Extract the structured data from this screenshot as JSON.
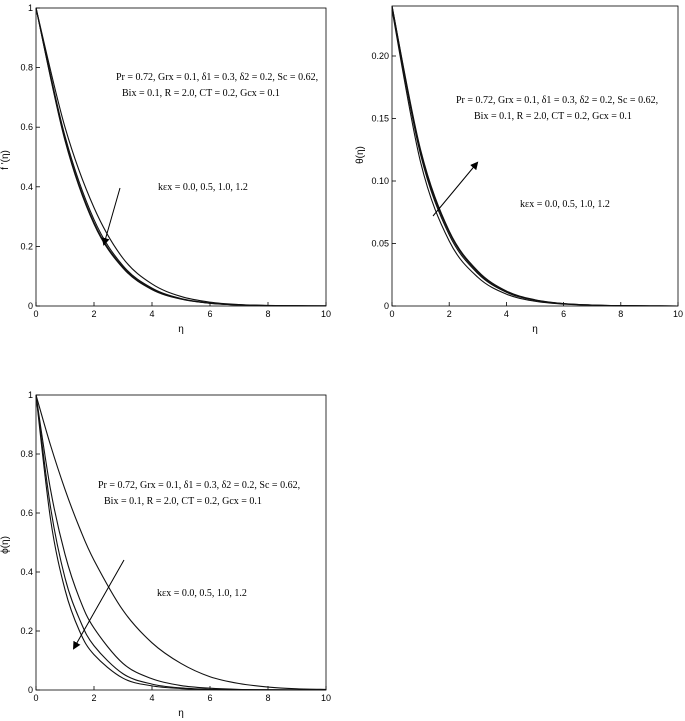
{
  "chart_data": [
    {
      "type": "line",
      "ylabel": "f '(η)",
      "xlabel": "η",
      "xlim": [
        0,
        10
      ],
      "ylim": [
        0,
        1
      ],
      "xticks": [
        "0",
        "2",
        "4",
        "6",
        "8",
        "10"
      ],
      "yticks": [
        "0",
        "0.2",
        "0.4",
        "0.6",
        "0.8",
        "1"
      ],
      "annotation_params_line1": "Pr = 0.72, Grx = 0.1, δ1 = 0.3, δ2 = 0.2, Sc = 0.62,",
      "annotation_params_line2": "Bix = 0.1, R = 2.0, CT = 0.2, Gcx = 0.1",
      "annotation_series": "kεx = 0.0, 0.5, 1.0, 1.2",
      "arrow_direction": "down",
      "x": [
        0,
        1,
        2,
        3,
        4,
        5,
        6,
        7,
        8,
        9,
        10
      ],
      "series": [
        {
          "name": "kεx = 0.0",
          "values": [
            1.0,
            0.6,
            0.33,
            0.16,
            0.074,
            0.032,
            0.013,
            0.005,
            0.002,
            0.0007,
            0.0003
          ]
        },
        {
          "name": "kεx = 0.5",
          "values": [
            1.0,
            0.57,
            0.29,
            0.135,
            0.06,
            0.025,
            0.01,
            0.004,
            0.0015,
            0.0005,
            0.0002
          ]
        },
        {
          "name": "kεx = 1.0",
          "values": [
            1.0,
            0.56,
            0.28,
            0.13,
            0.057,
            0.024,
            0.0095,
            0.0037,
            0.0014,
            0.0005,
            0.0002
          ]
        },
        {
          "name": "kεx = 1.2",
          "values": [
            1.0,
            0.555,
            0.275,
            0.127,
            0.055,
            0.023,
            0.009,
            0.0035,
            0.0013,
            0.0005,
            0.0002
          ]
        }
      ]
    },
    {
      "type": "line",
      "ylabel": "θ(η)",
      "xlabel": "η",
      "xlim": [
        0,
        10
      ],
      "ylim": [
        0,
        0.24
      ],
      "xticks": [
        "0",
        "2",
        "4",
        "6",
        "8",
        "10"
      ],
      "yticks": [
        "0",
        "0.05",
        "0.10",
        "0.15",
        "0.20"
      ],
      "annotation_params_line1": "Pr = 0.72, Grx = 0.1, δ1 = 0.3, δ2 = 0.2, Sc = 0.62,",
      "annotation_params_line2": "Bix = 0.1, R = 2.0, CT = 0.2, Gcx = 0.1",
      "annotation_series": "kεx = 0.0, 0.5, 1.0, 1.2",
      "arrow_direction": "up",
      "x": [
        0,
        1,
        2,
        3,
        4,
        5,
        6,
        7,
        8,
        9,
        10
      ],
      "series": [
        {
          "name": "kεx = 0.0",
          "values": [
            0.237,
            0.115,
            0.052,
            0.023,
            0.0095,
            0.0038,
            0.0015,
            0.0006,
            0.0002,
            0.0001,
            0.0
          ]
        },
        {
          "name": "kεx = 0.5",
          "values": [
            0.239,
            0.121,
            0.057,
            0.026,
            0.011,
            0.0045,
            0.0018,
            0.0007,
            0.0003,
            0.0001,
            0.0
          ]
        },
        {
          "name": "kεx = 1.0",
          "values": [
            0.24,
            0.123,
            0.059,
            0.027,
            0.0115,
            0.0048,
            0.0019,
            0.0008,
            0.0003,
            0.0001,
            0.0
          ]
        },
        {
          "name": "kεx = 1.2",
          "values": [
            0.241,
            0.125,
            0.06,
            0.028,
            0.012,
            0.005,
            0.002,
            0.0008,
            0.0003,
            0.0001,
            0.0
          ]
        }
      ]
    },
    {
      "type": "line",
      "ylabel": "ϕ(η)",
      "xlabel": "η",
      "xlim": [
        0,
        10
      ],
      "ylim": [
        0,
        1
      ],
      "xticks": [
        "0",
        "2",
        "4",
        "6",
        "8",
        "10"
      ],
      "yticks": [
        "0",
        "0.2",
        "0.4",
        "0.6",
        "0.8",
        "1"
      ],
      "annotation_params_line1": "Pr = 0.72, Grx = 0.1, δ1 = 0.3, δ2 = 0.2, Sc = 0.62,",
      "annotation_params_line2": "Bix = 0.1, R = 2.0, CT = 0.2, Gcx = 0.1",
      "annotation_series": "kεx = 0.0, 0.5, 1.0, 1.2",
      "arrow_direction": "down",
      "x": [
        0,
        0.5,
        1,
        1.5,
        2,
        3,
        4,
        5,
        6,
        7,
        8,
        9,
        10
      ],
      "series": [
        {
          "name": "kεx = 0.0",
          "values": [
            1.0,
            0.83,
            0.68,
            0.55,
            0.44,
            0.27,
            0.16,
            0.09,
            0.045,
            0.022,
            0.01,
            0.004,
            0.002
          ]
        },
        {
          "name": "kεx = 0.5",
          "values": [
            1.0,
            0.68,
            0.46,
            0.31,
            0.21,
            0.09,
            0.038,
            0.015,
            0.006,
            0.002,
            0.001,
            0.0004,
            0.0002
          ]
        },
        {
          "name": "kεx = 1.0",
          "values": [
            1.0,
            0.62,
            0.38,
            0.24,
            0.15,
            0.055,
            0.02,
            0.007,
            0.0025,
            0.001,
            0.0003,
            0.0001,
            0.0
          ]
        },
        {
          "name": "kεx = 1.2",
          "values": [
            1.0,
            0.58,
            0.34,
            0.2,
            0.12,
            0.04,
            0.014,
            0.005,
            0.0017,
            0.0006,
            0.0002,
            0.0001,
            0.0
          ]
        }
      ]
    }
  ]
}
